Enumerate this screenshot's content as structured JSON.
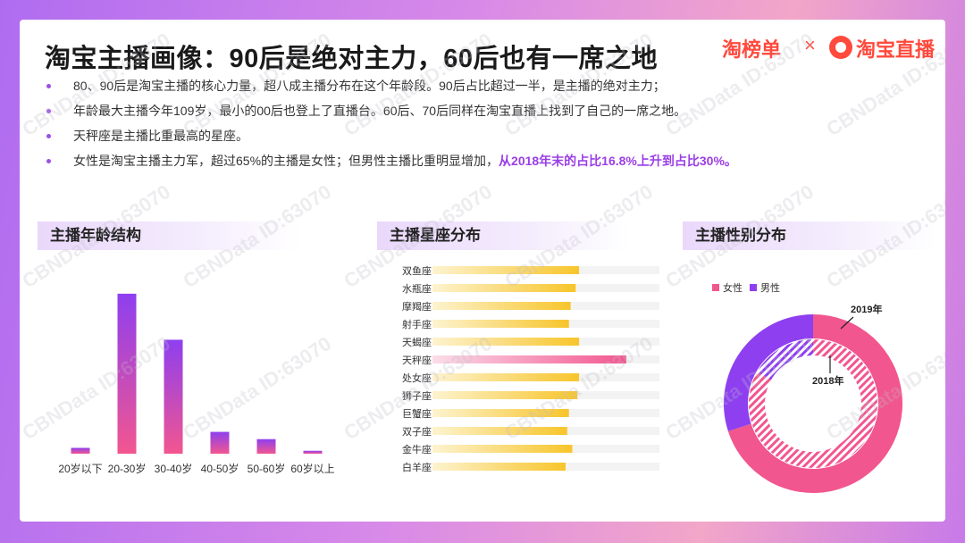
{
  "title": "淘宝主播画像：90后是绝对主力，60后也有一席之地",
  "logos": {
    "left": "淘榜单",
    "sep": "×",
    "right": "淘宝直播"
  },
  "bullets": [
    "80、90后是淘宝主播的核心力量，超八成主播分布在这个年龄段。90后占比超过一半，是主播的绝对主力；",
    "年龄最大主播今年109岁，最小的00后也登上了直播台。60后、70后同样在淘宝直播上找到了自己的一席之地。",
    "天秤座是主播比重最高的星座。"
  ],
  "bullet4": {
    "text": "女性是淘宝主播主力军，超过65%的主播是女性；但男性主播比重明显增加，",
    "highlight": "从2018年末的占比16.8%上升到占比30%。"
  },
  "watermark": "CBNData ID:63070",
  "colors": {
    "purple": "#8e3ff0",
    "pink": "#f2568f",
    "gold": "#f7c52b",
    "accent": "#9b3ee6"
  },
  "chart_data": [
    {
      "type": "bar",
      "title": "主播年龄结构",
      "categories": [
        "20岁以下",
        "20-30岁",
        "30-40岁",
        "40-50岁",
        "50-60岁",
        "60岁以上"
      ],
      "values": [
        1.2,
        33,
        23.5,
        4.5,
        3,
        0.6
      ],
      "ylim": [
        0,
        35
      ]
    },
    {
      "type": "bar",
      "orientation": "horizontal",
      "title": "主播星座分布",
      "categories": [
        "双鱼座",
        "水瓶座",
        "摩羯座",
        "射手座",
        "天蝎座",
        "天秤座",
        "处女座",
        "狮子座",
        "巨蟹座",
        "双子座",
        "金牛座",
        "白羊座"
      ],
      "values": [
        8.7,
        8.5,
        8.2,
        8.1,
        8.7,
        11.5,
        8.7,
        8.6,
        8.1,
        8.0,
        8.3,
        7.9
      ],
      "xlim": [
        0,
        14
      ]
    },
    {
      "type": "pie",
      "subtype": "nested-donut",
      "title": "主播性别分布",
      "legend": [
        "女性",
        "男性"
      ],
      "series": [
        {
          "name": "2019年",
          "values": [
            70,
            30
          ]
        },
        {
          "name": "2018年",
          "values": [
            83.2,
            16.8
          ]
        }
      ]
    }
  ]
}
